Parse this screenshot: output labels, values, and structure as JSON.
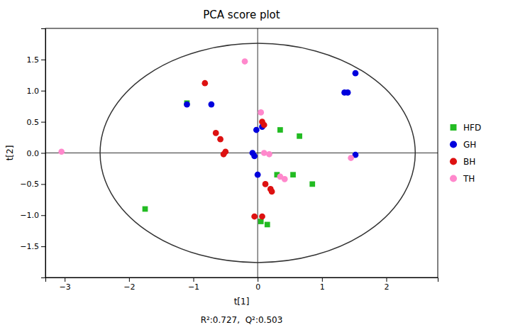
{
  "chart_data": {
    "type": "scatter",
    "title": "PCA score plot",
    "xlabel": "t[1]",
    "ylabel": "t[2]",
    "annotation": "R²:0.727,  Q²:0.503",
    "xlim": [
      -3.3,
      2.8
    ],
    "ylim": [
      -2.0,
      2.0
    ],
    "xticks": [
      {
        "value": -3.0,
        "label": "−3"
      },
      {
        "value": -2.0,
        "label": "−2"
      },
      {
        "value": -1.0,
        "label": "−1"
      },
      0,
      1,
      2
    ],
    "yticks": [
      {
        "value": -1.5,
        "label": "−1.5"
      },
      {
        "value": -1.0,
        "label": "−1.0"
      },
      {
        "value": -0.5,
        "label": "−0.5"
      },
      {
        "value": 0.0,
        "label": "0.0"
      },
      {
        "value": 0.5,
        "label": "0.5"
      },
      {
        "value": 1.0,
        "label": "1.0"
      },
      {
        "value": 1.5,
        "label": "1.5"
      }
    ],
    "grid": false,
    "legend": "right",
    "crosshair": {
      "x": 0.0,
      "y": 0.0
    },
    "ellipse": {
      "cx": 0.0,
      "cy": 0.0,
      "rx": 2.45,
      "ry": 1.76
    },
    "series": [
      {
        "name": "HFD",
        "color": "#22bb22",
        "marker": "square",
        "x": [
          -1.75,
          -1.1,
          0.35,
          0.3,
          0.55,
          0.65,
          0.85,
          0.05,
          0.15
        ],
        "y": [
          -0.9,
          0.8,
          0.37,
          -0.35,
          -0.35,
          0.27,
          -0.5,
          -1.1,
          -1.15
        ]
      },
      {
        "name": "GH",
        "color": "#0000dd",
        "marker": "circle",
        "x": [
          -1.1,
          -0.72,
          0.07,
          -0.02,
          0.0,
          -0.05,
          -0.08,
          1.52,
          1.35,
          1.4,
          1.52
        ],
        "y": [
          0.78,
          0.78,
          0.42,
          0.37,
          -0.35,
          -0.05,
          0.0,
          1.28,
          0.97,
          0.97,
          -0.03
        ]
      },
      {
        "name": "BH",
        "color": "#dd1111",
        "marker": "circle",
        "x": [
          -0.82,
          -0.65,
          -0.58,
          -0.53,
          -0.5,
          0.07,
          0.1,
          0.12,
          0.2,
          0.22,
          0.07,
          -0.05
        ],
        "y": [
          1.12,
          0.32,
          0.22,
          -0.02,
          0.02,
          0.5,
          0.45,
          -0.5,
          -0.58,
          -0.62,
          -1.02,
          -1.02
        ]
      },
      {
        "name": "TH",
        "color": "#ff88cc",
        "marker": "circle",
        "x": [
          -3.05,
          -0.2,
          0.05,
          0.1,
          0.18,
          0.35,
          0.42,
          1.45
        ],
        "y": [
          0.02,
          1.47,
          0.65,
          0.0,
          -0.02,
          -0.38,
          -0.42,
          -0.08
        ]
      }
    ]
  }
}
